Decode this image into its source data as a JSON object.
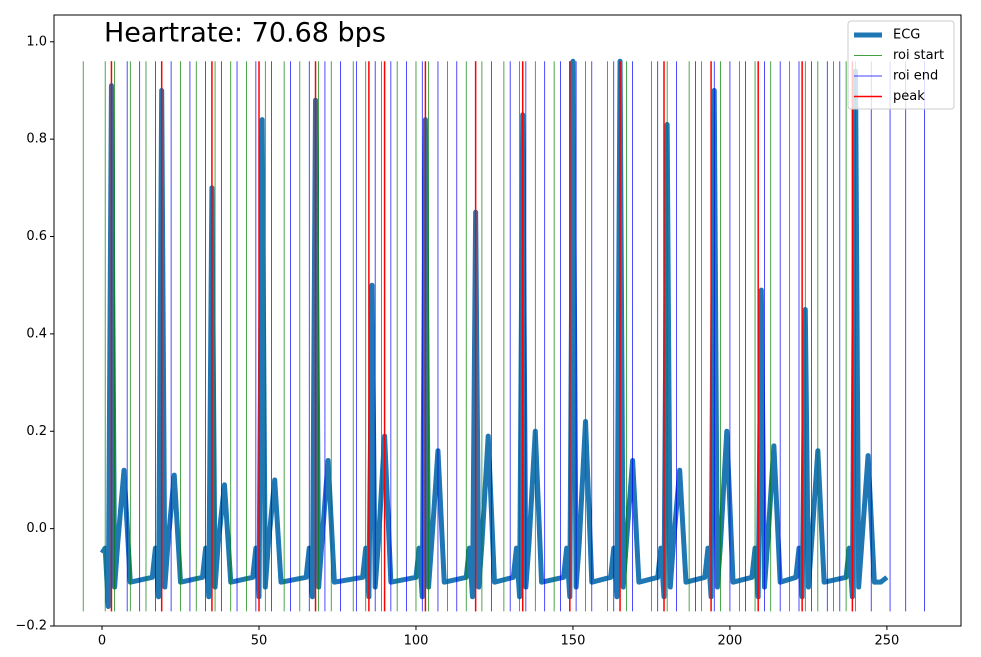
{
  "chart_data": {
    "type": "line",
    "annotation": {
      "text": "Heartrate: 70.68 bps",
      "color": "green"
    },
    "x": [
      0,
      1,
      2,
      3,
      4,
      5,
      7,
      9,
      16,
      17,
      18,
      19,
      20,
      21,
      23,
      25,
      32,
      33,
      34,
      35,
      36,
      37,
      39,
      41,
      48,
      49,
      50,
      51,
      52,
      53,
      55,
      57,
      65,
      66,
      67,
      68,
      69,
      70,
      72,
      74,
      83,
      84,
      85,
      86,
      87,
      88,
      90,
      92,
      100,
      101,
      102,
      103,
      104,
      105,
      107,
      109,
      116,
      117,
      118,
      119,
      120,
      121,
      123,
      125,
      131,
      132,
      133,
      134,
      135,
      136,
      138,
      140,
      147,
      148,
      149,
      150,
      151,
      152,
      154,
      156,
      162,
      163,
      164,
      165,
      166,
      167,
      169,
      171,
      177,
      178,
      179,
      180,
      181,
      182,
      184,
      186,
      192,
      193,
      194,
      195,
      196,
      197,
      199,
      201,
      207,
      208,
      209,
      210,
      211,
      212,
      214,
      216,
      221,
      222,
      223,
      224,
      225,
      226,
      228,
      230,
      237,
      238,
      239,
      240,
      241,
      242,
      244,
      246,
      248,
      250
    ],
    "series": [
      {
        "name": "ECG",
        "color": "#1f77b4",
        "values": [
          -0.05,
          -0.04,
          -0.16,
          0.91,
          -0.12,
          -0.03,
          0.12,
          -0.11,
          -0.1,
          -0.04,
          -0.14,
          0.9,
          -0.12,
          -0.03,
          0.11,
          -0.11,
          -0.1,
          -0.04,
          -0.14,
          0.7,
          -0.12,
          -0.03,
          0.09,
          -0.11,
          -0.1,
          -0.04,
          -0.14,
          0.84,
          -0.12,
          -0.03,
          0.1,
          -0.11,
          -0.1,
          -0.04,
          -0.14,
          0.88,
          -0.12,
          -0.03,
          0.14,
          -0.11,
          -0.1,
          -0.04,
          -0.14,
          0.5,
          -0.12,
          -0.03,
          0.19,
          -0.11,
          -0.1,
          -0.04,
          -0.14,
          0.84,
          -0.12,
          -0.03,
          0.16,
          -0.11,
          -0.1,
          -0.04,
          -0.14,
          0.65,
          -0.12,
          -0.03,
          0.19,
          -0.11,
          -0.1,
          -0.04,
          -0.14,
          0.85,
          -0.12,
          -0.03,
          0.2,
          -0.11,
          -0.1,
          -0.04,
          -0.14,
          0.96,
          -0.12,
          -0.03,
          0.22,
          -0.11,
          -0.1,
          -0.04,
          -0.14,
          0.96,
          -0.12,
          -0.03,
          0.14,
          -0.11,
          -0.1,
          -0.04,
          -0.14,
          0.83,
          -0.12,
          -0.03,
          0.12,
          -0.11,
          -0.1,
          -0.04,
          -0.14,
          0.9,
          -0.12,
          -0.03,
          0.2,
          -0.11,
          -0.1,
          -0.04,
          -0.14,
          0.49,
          -0.12,
          -0.03,
          0.17,
          -0.11,
          -0.1,
          -0.04,
          -0.14,
          0.45,
          -0.12,
          -0.03,
          0.16,
          -0.11,
          -0.1,
          -0.04,
          -0.14,
          0.94,
          -0.12,
          -0.03,
          0.15,
          -0.11,
          -0.11,
          -0.1
        ]
      }
    ],
    "vlines_span": [
      -0.17,
      0.96
    ],
    "vlines": [
      {
        "name": "roi start",
        "color": "green",
        "x": [
          -6,
          1,
          4,
          9,
          14,
          19,
          25,
          30,
          36,
          41,
          46,
          52,
          58,
          63,
          69,
          73,
          80,
          84,
          89,
          94,
          100,
          104,
          110,
          116,
          121,
          128,
          133,
          138,
          144,
          149,
          154,
          161,
          167,
          175,
          180,
          187,
          191,
          197,
          203,
          208,
          213,
          219,
          224,
          228,
          233,
          237,
          240
        ]
      },
      {
        "name": "roi end",
        "color": "blue",
        "x": [
          3,
          8,
          12,
          17,
          22,
          28,
          33,
          38,
          43,
          49,
          54,
          60,
          66,
          71,
          76,
          81,
          87,
          92,
          97,
          102,
          107,
          113,
          119,
          124,
          130,
          135,
          141,
          146,
          151,
          156,
          163,
          169,
          177,
          183,
          189,
          195,
          200,
          205,
          211,
          216,
          222,
          226,
          231,
          235,
          239,
          245,
          251,
          256,
          262
        ]
      },
      {
        "name": "peak",
        "color": "red",
        "x": [
          3,
          19,
          35,
          50,
          68,
          85,
          90,
          103,
          119,
          134,
          149,
          165,
          179,
          194,
          209,
          223,
          239
        ]
      }
    ],
    "xlim": [
      -15.3,
      273.6
    ],
    "xticks": [
      0,
      50,
      100,
      150,
      200,
      250
    ],
    "ylim": [
      -0.2,
      1.055
    ],
    "yticks": [
      {
        "value": -0.2,
        "label": "−0.2"
      },
      {
        "value": 0,
        "label": "0.0"
      },
      {
        "value": 0.2,
        "label": "0.2"
      },
      {
        "value": 0.4,
        "label": "0.4"
      },
      {
        "value": 0.6,
        "label": "0.6"
      },
      {
        "value": 0.8,
        "label": "0.8"
      },
      {
        "value": 1.0,
        "label": "1.0"
      }
    ],
    "legend": "upper right"
  }
}
